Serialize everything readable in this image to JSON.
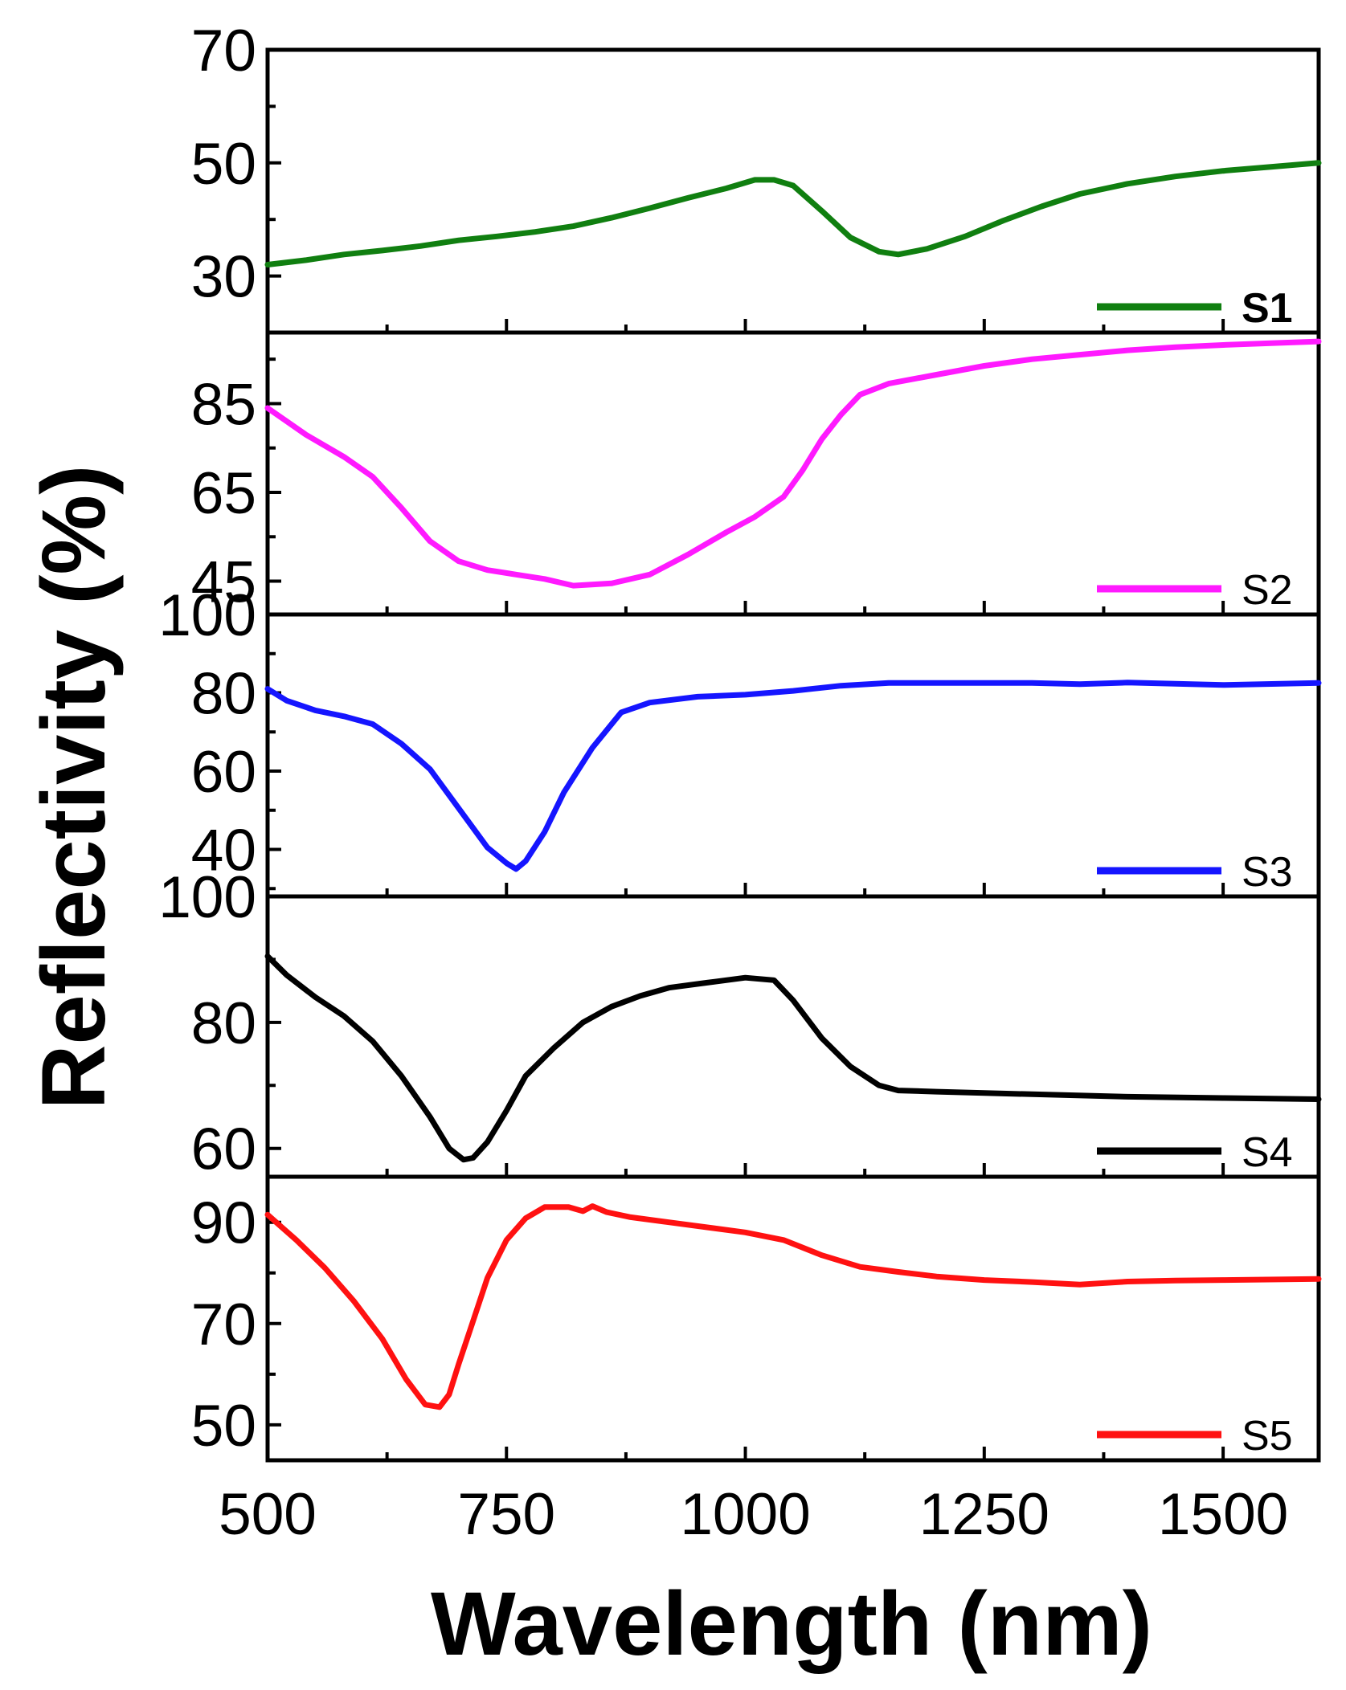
{
  "chart_data": {
    "type": "line",
    "xlabel": "Wavelength (nm)",
    "ylabel": "Reflectivity (%)",
    "xlim": [
      500,
      1600
    ],
    "xticks": [
      500,
      750,
      1000,
      1250,
      1500
    ],
    "xtick_labels": [
      "500",
      "750",
      "1000",
      "1250",
      "1500"
    ],
    "panels": [
      {
        "name": "S1",
        "legend": "S1",
        "color": "#107f10",
        "ylim": [
          20,
          70
        ],
        "yticks": [
          30,
          50,
          70
        ],
        "ytick_labels": [
          "30",
          "50",
          "70"
        ],
        "x": [
          500,
          540,
          580,
          620,
          660,
          700,
          740,
          780,
          820,
          860,
          900,
          940,
          980,
          1010,
          1030,
          1050,
          1080,
          1110,
          1140,
          1160,
          1190,
          1230,
          1270,
          1310,
          1350,
          1400,
          1450,
          1500,
          1550,
          1600
        ],
        "y": [
          32,
          32.8,
          33.8,
          34.5,
          35.3,
          36.3,
          37,
          37.8,
          38.8,
          40.3,
          42,
          43.8,
          45.5,
          47,
          47,
          46,
          41.5,
          36.8,
          34.3,
          33.8,
          34.8,
          37,
          39.8,
          42.3,
          44.5,
          46.3,
          47.6,
          48.6,
          49.3,
          50
        ]
      },
      {
        "name": "S2",
        "legend": "S2",
        "color": "#ff1aff",
        "ylim": [
          37.5,
          101
        ],
        "yticks": [
          45,
          65,
          85
        ],
        "ytick_labels": [
          "45",
          "65",
          "85"
        ],
        "x": [
          500,
          540,
          580,
          610,
          640,
          670,
          700,
          730,
          760,
          790,
          820,
          860,
          900,
          940,
          980,
          1010,
          1040,
          1060,
          1080,
          1100,
          1120,
          1150,
          1200,
          1250,
          1300,
          1350,
          1400,
          1450,
          1500,
          1550,
          1600
        ],
        "y": [
          84,
          78,
          73,
          68.5,
          61.5,
          54,
          49.5,
          47.5,
          46.5,
          45.5,
          44,
          44.5,
          46.5,
          51,
          56,
          59.5,
          64,
          70,
          77,
          82.5,
          87,
          89.5,
          91.5,
          93.5,
          95,
          96,
          97,
          97.7,
          98.2,
          98.6,
          99
        ]
      },
      {
        "name": "S3",
        "legend": "S3",
        "color": "#1515ff",
        "ylim": [
          28,
          100
        ],
        "yticks": [
          40,
          60,
          80,
          100
        ],
        "ytick_labels": [
          "40",
          "60",
          "80",
          "100"
        ],
        "x": [
          500,
          520,
          550,
          580,
          610,
          640,
          670,
          700,
          730,
          750,
          760,
          770,
          790,
          810,
          840,
          870,
          900,
          950,
          1000,
          1050,
          1100,
          1150,
          1200,
          1300,
          1350,
          1400,
          1450,
          1500,
          1600
        ],
        "y": [
          81,
          78,
          75.5,
          74,
          72,
          67,
          60.5,
          50.5,
          40.5,
          36.5,
          35,
          37,
          44.5,
          54.5,
          66,
          75,
          77.5,
          79,
          79.5,
          80.5,
          81.8,
          82.5,
          82.5,
          82.5,
          82.2,
          82.6,
          82.3,
          82,
          82.5
        ]
      },
      {
        "name": "S4",
        "legend": "S4",
        "color": "#000000",
        "ylim": [
          55.5,
          100
        ],
        "yticks": [
          60,
          80,
          100
        ],
        "ytick_labels": [
          "60",
          "80",
          "100"
        ],
        "x": [
          500,
          520,
          550,
          580,
          610,
          640,
          670,
          690,
          705,
          715,
          730,
          750,
          770,
          800,
          830,
          860,
          890,
          920,
          960,
          1000,
          1030,
          1050,
          1080,
          1110,
          1140,
          1160,
          1200,
          1300,
          1400,
          1500,
          1600
        ],
        "y": [
          90.5,
          87.5,
          84,
          81,
          77,
          71.5,
          65,
          60,
          58.2,
          58.5,
          61,
          66,
          71.5,
          76,
          80,
          82.5,
          84.2,
          85.5,
          86.3,
          87.1,
          86.7,
          83.5,
          77.5,
          73,
          70,
          69.2,
          69,
          68.6,
          68.2,
          68,
          67.8
        ]
      },
      {
        "name": "S5",
        "legend": "S5",
        "color": "#ff1111",
        "ylim": [
          43,
          99
        ],
        "yticks": [
          50,
          70,
          90
        ],
        "ytick_labels": [
          "50",
          "70",
          "90"
        ],
        "x": [
          500,
          530,
          560,
          590,
          620,
          645,
          665,
          680,
          690,
          700,
          715,
          730,
          750,
          770,
          790,
          815,
          830,
          840,
          855,
          880,
          920,
          960,
          1000,
          1040,
          1080,
          1120,
          1160,
          1200,
          1250,
          1300,
          1350,
          1400,
          1450,
          1500,
          1600
        ],
        "y": [
          91.5,
          86.5,
          81,
          74.5,
          67,
          59,
          54,
          53.5,
          56,
          62,
          70.5,
          79,
          86.5,
          90.8,
          93,
          93,
          92.2,
          93.2,
          92,
          91,
          90,
          89,
          88,
          86.5,
          83.5,
          81.2,
          80.2,
          79.3,
          78.6,
          78.2,
          77.7,
          78.3,
          78.5,
          78.6,
          78.8
        ]
      }
    ]
  }
}
